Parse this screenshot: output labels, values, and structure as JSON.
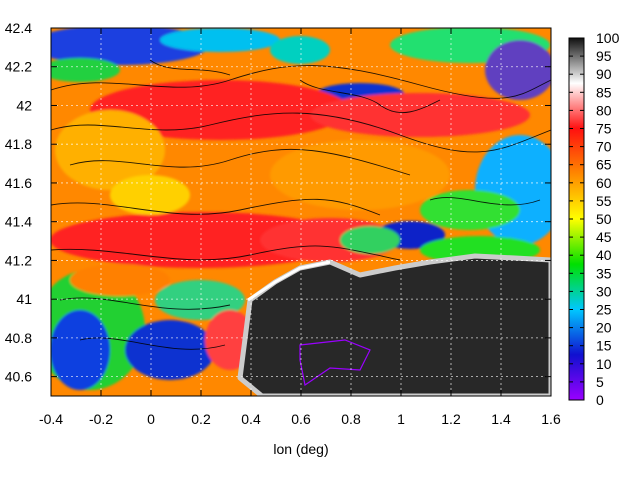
{
  "chart_data": {
    "type": "heatmap",
    "title": "",
    "xlabel": "lon (deg)",
    "ylabel": "",
    "xlim": [
      -0.4,
      1.6
    ],
    "ylim": [
      40.5,
      42.4
    ],
    "x_ticks": [
      "-0.4",
      "-0.2",
      "0",
      "0.2",
      "0.4",
      "0.6",
      "0.8",
      "1",
      "1.2",
      "1.4",
      "1.6"
    ],
    "y_ticks": [
      "40.6",
      "40.8",
      "41",
      "41.2",
      "41.4",
      "41.6",
      "41.8",
      "42",
      "42.2",
      "42.4"
    ],
    "colorbar": {
      "range": [
        0,
        100
      ],
      "ticks": [
        "0",
        "5",
        "10",
        "15",
        "20",
        "25",
        "30",
        "35",
        "40",
        "45",
        "50",
        "55",
        "60",
        "65",
        "70",
        "75",
        "80",
        "85",
        "90",
        "95",
        "100"
      ],
      "colors": [
        "#9a00ff",
        "#1010d0",
        "#00c8ff",
        "#00e000",
        "#ffff00",
        "#ff8800",
        "#ff1010",
        "#ffffff",
        "#101010"
      ]
    },
    "grid": true,
    "sea_color": "#282828"
  }
}
